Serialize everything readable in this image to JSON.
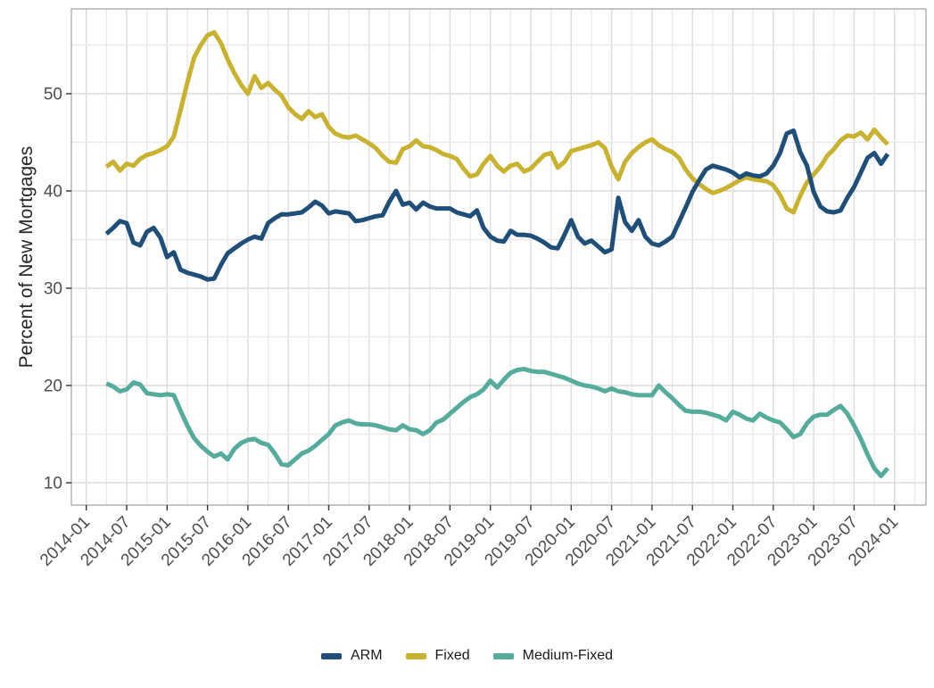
{
  "figure": {
    "y_axis_title": "Percent of New Mortgages"
  },
  "colors": {
    "arm": "#1F4E79",
    "fixed": "#C8B22F",
    "medium_fixed": "#55AC9C",
    "grid_major": "#DCDCDC",
    "grid_minor": "#EAEAEA",
    "panel_border": "#A8A8A8",
    "tick_mark": "#333333",
    "tick_label": "#4D4D4D",
    "axis_title": "#262626"
  },
  "chart_data": {
    "type": "line",
    "title": "",
    "xlabel": "",
    "ylabel": "Percent of New Mortgages",
    "grid": true,
    "legend_position": "bottom",
    "ylim": [
      7.7,
      58.7
    ],
    "y_ticks": [
      10,
      20,
      30,
      40,
      50
    ],
    "x_tick_labels": [
      "2014-01",
      "2014-07",
      "2015-01",
      "2015-07",
      "2016-01",
      "2016-07",
      "2017-01",
      "2017-07",
      "2018-01",
      "2018-07",
      "2019-01",
      "2019-07",
      "2020-01",
      "2020-07",
      "2021-01",
      "2021-07",
      "2022-01",
      "2022-07",
      "2023-01",
      "2023-07",
      "2024-01"
    ],
    "x": [
      "2014-04",
      "2014-05",
      "2014-06",
      "2014-07",
      "2014-08",
      "2014-09",
      "2014-10",
      "2014-11",
      "2014-12",
      "2015-01",
      "2015-02",
      "2015-03",
      "2015-04",
      "2015-05",
      "2015-06",
      "2015-07",
      "2015-08",
      "2015-09",
      "2015-10",
      "2015-11",
      "2015-12",
      "2016-01",
      "2016-02",
      "2016-03",
      "2016-04",
      "2016-05",
      "2016-06",
      "2016-07",
      "2016-08",
      "2016-09",
      "2016-10",
      "2016-11",
      "2016-12",
      "2017-01",
      "2017-02",
      "2017-03",
      "2017-04",
      "2017-05",
      "2017-06",
      "2017-07",
      "2017-08",
      "2017-09",
      "2017-10",
      "2017-11",
      "2017-12",
      "2018-01",
      "2018-02",
      "2018-03",
      "2018-04",
      "2018-05",
      "2018-06",
      "2018-07",
      "2018-08",
      "2018-09",
      "2018-10",
      "2018-11",
      "2018-12",
      "2019-01",
      "2019-02",
      "2019-03",
      "2019-04",
      "2019-05",
      "2019-06",
      "2019-07",
      "2019-08",
      "2019-09",
      "2019-10",
      "2019-11",
      "2019-12",
      "2020-01",
      "2020-02",
      "2020-03",
      "2020-04",
      "2020-05",
      "2020-06",
      "2020-07",
      "2020-08",
      "2020-09",
      "2020-10",
      "2020-11",
      "2020-12",
      "2021-01",
      "2021-02",
      "2021-03",
      "2021-04",
      "2021-05",
      "2021-06",
      "2021-07",
      "2021-08",
      "2021-09",
      "2021-10",
      "2021-11",
      "2021-12",
      "2022-01",
      "2022-02",
      "2022-03",
      "2022-04",
      "2022-05",
      "2022-06",
      "2022-07",
      "2022-08",
      "2022-09",
      "2022-10",
      "2022-11",
      "2022-12",
      "2023-01",
      "2023-02",
      "2023-03",
      "2023-04",
      "2023-05",
      "2023-06",
      "2023-07",
      "2023-08",
      "2023-09",
      "2023-10",
      "2023-11",
      "2023-12"
    ],
    "series": [
      {
        "name": "ARM",
        "color": "#1F4E79",
        "values": [
          35.6,
          36.2,
          36.9,
          36.7,
          34.7,
          34.4,
          35.8,
          36.2,
          35.2,
          33.2,
          33.7,
          31.9,
          31.6,
          31.4,
          31.2,
          30.9,
          31.0,
          32.4,
          33.6,
          34.1,
          34.6,
          35.0,
          35.3,
          35.1,
          36.7,
          37.2,
          37.6,
          37.6,
          37.7,
          37.8,
          38.3,
          38.9,
          38.5,
          37.7,
          37.9,
          37.8,
          37.7,
          36.9,
          37.0,
          37.2,
          37.4,
          37.5,
          38.9,
          40.0,
          38.6,
          38.8,
          38.1,
          38.8,
          38.4,
          38.2,
          38.2,
          38.2,
          37.8,
          37.6,
          37.4,
          38.0,
          36.2,
          35.3,
          34.9,
          34.8,
          35.9,
          35.5,
          35.5,
          35.4,
          35.1,
          34.7,
          34.2,
          34.1,
          35.5,
          37.0,
          35.3,
          34.6,
          34.9,
          34.3,
          33.7,
          34.0,
          39.3,
          36.8,
          35.9,
          37.0,
          35.3,
          34.6,
          34.4,
          34.8,
          35.3,
          36.8,
          38.3,
          39.9,
          41.1,
          42.2,
          42.6,
          42.4,
          42.2,
          41.9,
          41.4,
          41.8,
          41.6,
          41.5,
          41.8,
          42.6,
          43.9,
          45.9,
          46.2,
          44.0,
          42.6,
          39.9,
          38.4,
          37.9,
          37.8,
          38.0,
          39.3,
          40.4,
          41.9,
          43.4,
          43.9,
          42.8,
          43.8
        ]
      },
      {
        "name": "Fixed",
        "color": "#C8B22F",
        "values": [
          42.5,
          43.0,
          42.1,
          42.8,
          42.6,
          43.3,
          43.7,
          43.9,
          44.2,
          44.6,
          45.6,
          48.3,
          51.1,
          53.7,
          55.0,
          56.0,
          56.3,
          55.2,
          53.5,
          52.1,
          50.9,
          50.0,
          51.8,
          50.6,
          51.1,
          50.4,
          49.8,
          48.6,
          47.9,
          47.4,
          48.2,
          47.6,
          47.9,
          46.6,
          45.9,
          45.6,
          45.5,
          45.7,
          45.3,
          44.9,
          44.4,
          43.6,
          43.0,
          42.9,
          44.3,
          44.6,
          45.2,
          44.6,
          44.5,
          44.2,
          43.8,
          43.6,
          43.3,
          42.3,
          41.5,
          41.7,
          42.8,
          43.6,
          42.6,
          42.0,
          42.6,
          42.8,
          42.0,
          42.3,
          43.0,
          43.7,
          43.9,
          42.4,
          43.0,
          44.1,
          44.3,
          44.5,
          44.7,
          45.0,
          44.4,
          42.5,
          41.2,
          43.0,
          43.9,
          44.5,
          45.0,
          45.3,
          44.7,
          44.3,
          44.0,
          43.4,
          42.2,
          41.3,
          40.7,
          40.2,
          39.8,
          40.0,
          40.3,
          40.7,
          41.1,
          41.4,
          41.2,
          41.1,
          41.0,
          40.6,
          39.6,
          38.2,
          37.8,
          39.5,
          40.9,
          41.7,
          42.5,
          43.6,
          44.3,
          45.2,
          45.7,
          45.6,
          46.0,
          45.3,
          46.3,
          45.5,
          44.8
        ]
      },
      {
        "name": "Medium-Fixed",
        "color": "#55AC9C",
        "values": [
          20.2,
          19.9,
          19.4,
          19.6,
          20.3,
          20.1,
          19.2,
          19.1,
          19.0,
          19.1,
          19.0,
          17.4,
          15.9,
          14.6,
          13.8,
          13.2,
          12.7,
          13.0,
          12.4,
          13.5,
          14.1,
          14.4,
          14.5,
          14.1,
          13.9,
          13.0,
          11.9,
          11.8,
          12.4,
          13.0,
          13.3,
          13.8,
          14.4,
          15.0,
          15.9,
          16.2,
          16.4,
          16.1,
          16.0,
          16.0,
          15.9,
          15.7,
          15.5,
          15.4,
          15.9,
          15.5,
          15.4,
          15.0,
          15.4,
          16.2,
          16.5,
          17.1,
          17.7,
          18.3,
          18.8,
          19.1,
          19.6,
          20.5,
          19.8,
          20.6,
          21.3,
          21.6,
          21.7,
          21.5,
          21.4,
          21.4,
          21.2,
          21.0,
          20.8,
          20.5,
          20.2,
          20.0,
          19.9,
          19.7,
          19.4,
          19.7,
          19.4,
          19.3,
          19.1,
          19.0,
          19.0,
          19.0,
          20.0,
          19.3,
          18.7,
          18.0,
          17.4,
          17.3,
          17.3,
          17.2,
          17.0,
          16.8,
          16.4,
          17.3,
          17.0,
          16.6,
          16.4,
          17.1,
          16.7,
          16.4,
          16.2,
          15.5,
          14.7,
          15.0,
          16.1,
          16.8,
          17.0,
          17.0,
          17.5,
          17.9,
          17.1,
          15.9,
          14.5,
          12.9,
          11.5,
          10.7,
          11.5
        ]
      }
    ]
  }
}
